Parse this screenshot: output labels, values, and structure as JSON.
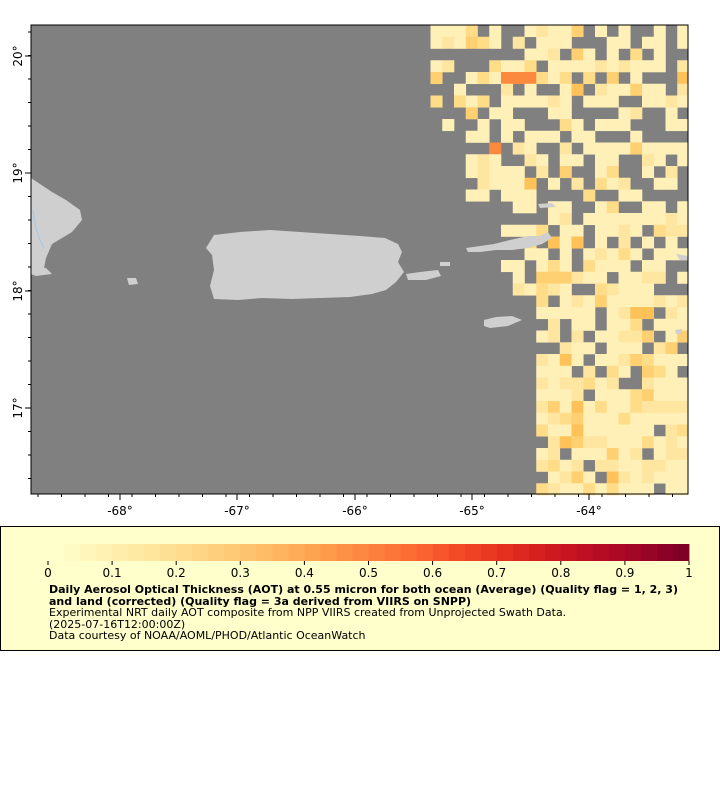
{
  "map": {
    "x_ticks": [
      "-68°",
      "-67°",
      "-66°",
      "-65°",
      "-64°"
    ],
    "y_ticks": [
      "17°",
      "18°",
      "19°",
      "20°"
    ],
    "background_color": "#808080",
    "land_color": "#cfcfcf"
  },
  "legend": {
    "colorbar_ticks": [
      "0",
      "0.1",
      "0.2",
      "0.3",
      "0.4",
      "0.5",
      "0.6",
      "0.7",
      "0.8",
      "0.9",
      "1"
    ],
    "title": "Daily Aerosol Optical Thickness (AOT) at 0.55 micron for both ocean (Average) (Quality flag = 1, 2, 3) and land (corrected) (Quality flag = 3a derived from VIIRS on SNPP)",
    "line2": "Experimental NRT daily AOT composite from NPP VIIRS created from Unprojected Swath Data.",
    "line3": "(2025-07-16T12:00:00Z)",
    "line4": "Data courtesy of NOAA/AOML/PHOD/Atlantic OceanWatch"
  }
}
